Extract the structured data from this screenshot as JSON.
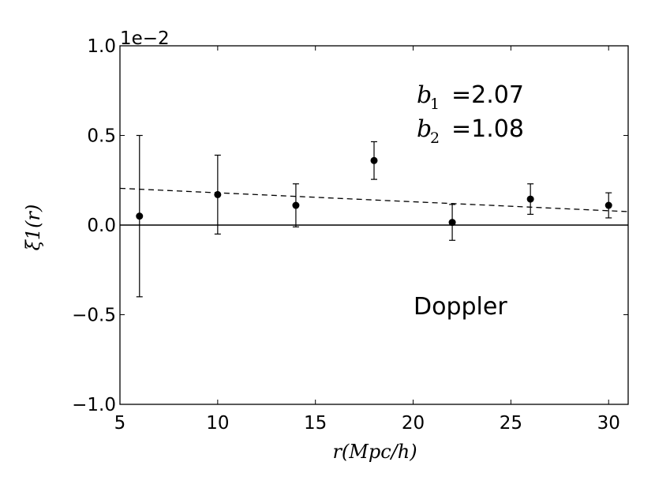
{
  "chart_data": {
    "type": "scatter",
    "xlabel": "r(Mpc/h)",
    "ylabel": "ξ1(r)",
    "xlim": [
      5,
      31
    ],
    "ylim": [
      -1.0,
      1.0
    ],
    "y_scale_label": "1e−2",
    "x_ticks": [
      5,
      10,
      15,
      20,
      25,
      30
    ],
    "x_tick_labels": [
      "5",
      "10",
      "15",
      "20",
      "25",
      "30"
    ],
    "y_ticks": [
      -1.0,
      -0.5,
      0.0,
      0.5,
      1.0
    ],
    "y_tick_labels": [
      "−1.0",
      "−0.5",
      "0.0",
      "0.5",
      "1.0"
    ],
    "grid": false,
    "series": [
      {
        "kind": "points-with-errorbars",
        "color": "#000000",
        "x": [
          6,
          10,
          14,
          18,
          22,
          26,
          30
        ],
        "y": [
          0.05,
          0.17,
          0.11,
          0.36,
          0.015,
          0.145,
          0.11
        ],
        "yerr": [
          0.45,
          0.22,
          0.12,
          0.105,
          0.1,
          0.085,
          0.07
        ]
      },
      {
        "kind": "dashed-line",
        "color": "#000000",
        "x": [
          5,
          31
        ],
        "y": [
          0.205,
          0.075
        ]
      },
      {
        "kind": "zero-line",
        "color": "#000000",
        "y": 0.0
      }
    ],
    "annotations": {
      "b1": {
        "symbol": "b",
        "sub": "1",
        "value": "=2.07"
      },
      "b2": {
        "symbol": "b",
        "sub": "2",
        "value": "=1.08"
      },
      "label": "Doppler"
    }
  }
}
